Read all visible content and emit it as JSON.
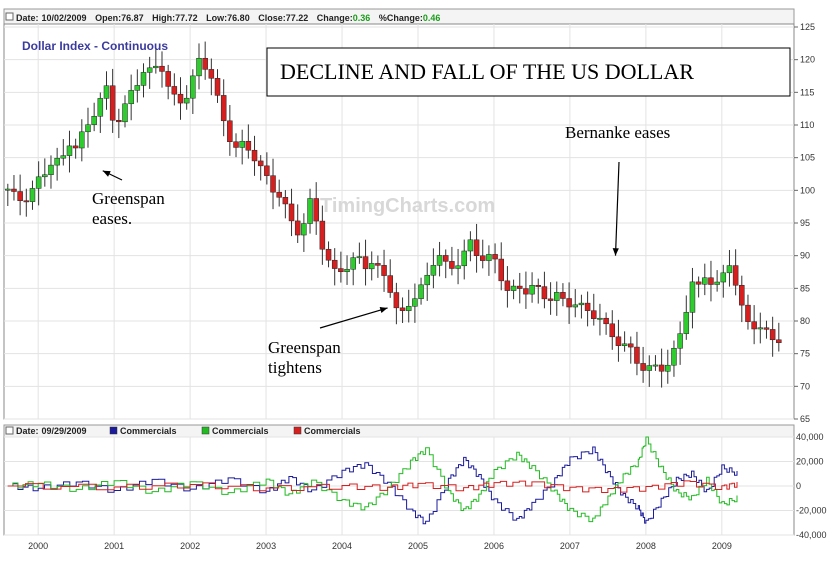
{
  "header": {
    "date_label": "Date:",
    "date": "10/02/2009",
    "open_label": "Open:",
    "open": "76.87",
    "high_label": "High:",
    "high": "77.72",
    "low_label": "Low:",
    "low": "76.80",
    "close_label": "Close:",
    "close": "77.22",
    "change_label": "Change:",
    "change": "0.36",
    "pct_label": "%Change:",
    "pct": "0.46"
  },
  "watermark": "TimingCharts.com",
  "colors": {
    "up": "#2ecc2e",
    "down": "#d62020",
    "series1": "#1b1b9b",
    "series2": "#22bb22",
    "series3": "#d62020"
  },
  "chart_data": [
    {
      "type": "candlestick",
      "title": "Dollar Index - Continuous",
      "banner": "DECLINE AND FALL OF THE US DOLLAR",
      "ylim": [
        65,
        125
      ],
      "yticks": [
        65,
        70,
        75,
        80,
        85,
        90,
        95,
        100,
        105,
        110,
        115,
        120,
        125
      ],
      "xticks": [
        "2000",
        "2001",
        "2002",
        "2003",
        "2004",
        "2005",
        "2006",
        "2007",
        "2008",
        "2009"
      ],
      "x_start": 1999.55,
      "x_end": 2009.95,
      "annotations": [
        {
          "id": "greenspan-eases",
          "lines": [
            "Greenspan",
            "eases."
          ],
          "target_year": 2000.85,
          "target_value": 103
        },
        {
          "id": "greenspan-tightens",
          "lines": [
            "Greenspan",
            "tightens"
          ],
          "target_year": 2004.6,
          "target_value": 82
        },
        {
          "id": "bernanke-eases",
          "lines": [
            "Bernanke eases"
          ],
          "target_year": 2007.6,
          "target_value": 90
        }
      ],
      "closes": [
        [
          1999.6,
          100.2
        ],
        [
          1999.7,
          99.0
        ],
        [
          1999.8,
          98.3
        ],
        [
          1999.9,
          99.5
        ],
        [
          2000.0,
          101.5
        ],
        [
          2000.1,
          103.0
        ],
        [
          2000.2,
          104.8
        ],
        [
          2000.3,
          104.0
        ],
        [
          2000.4,
          107.5
        ],
        [
          2000.5,
          106.5
        ],
        [
          2000.6,
          109.0
        ],
        [
          2000.7,
          111.0
        ],
        [
          2000.8,
          113.5
        ],
        [
          2000.9,
          115.5
        ],
        [
          2001.0,
          110.0
        ],
        [
          2001.1,
          111.5
        ],
        [
          2001.2,
          114.5
        ],
        [
          2001.3,
          116.5
        ],
        [
          2001.4,
          118.5
        ],
        [
          2001.5,
          118.0
        ],
        [
          2001.6,
          120.0
        ],
        [
          2001.7,
          116.0
        ],
        [
          2001.8,
          114.0
        ],
        [
          2001.9,
          113.5
        ],
        [
          2002.0,
          115.5
        ],
        [
          2002.1,
          120.0
        ],
        [
          2002.2,
          119.0
        ],
        [
          2002.3,
          117.0
        ],
        [
          2002.4,
          112.0
        ],
        [
          2002.5,
          108.5
        ],
        [
          2002.6,
          106.5
        ],
        [
          2002.7,
          107.0
        ],
        [
          2002.8,
          106.0
        ],
        [
          2002.9,
          104.0
        ],
        [
          2003.0,
          102.0
        ],
        [
          2003.1,
          100.0
        ],
        [
          2003.2,
          99.0
        ],
        [
          2003.3,
          96.0
        ],
        [
          2003.4,
          93.5
        ],
        [
          2003.5,
          95.0
        ],
        [
          2003.6,
          99.0
        ],
        [
          2003.7,
          93.0
        ],
        [
          2003.8,
          89.5
        ],
        [
          2003.9,
          87.5
        ],
        [
          2004.0,
          88.0
        ],
        [
          2004.1,
          88.5
        ],
        [
          2004.2,
          90.0
        ],
        [
          2004.3,
          88.5
        ],
        [
          2004.4,
          89.0
        ],
        [
          2004.5,
          87.5
        ],
        [
          2004.6,
          86.5
        ],
        [
          2004.7,
          82.0
        ],
        [
          2004.8,
          81.0
        ],
        [
          2004.9,
          83.0
        ],
        [
          2005.0,
          84.5
        ],
        [
          2005.1,
          86.0
        ],
        [
          2005.2,
          89.0
        ],
        [
          2005.3,
          90.5
        ],
        [
          2005.4,
          87.5
        ],
        [
          2005.5,
          88.5
        ],
        [
          2005.6,
          90.5
        ],
        [
          2005.7,
          92.0
        ],
        [
          2005.8,
          89.5
        ],
        [
          2005.9,
          90.0
        ],
        [
          2006.0,
          89.5
        ],
        [
          2006.1,
          86.5
        ],
        [
          2006.2,
          84.5
        ],
        [
          2006.3,
          85.0
        ],
        [
          2006.4,
          84.5
        ],
        [
          2006.5,
          85.5
        ],
        [
          2006.6,
          84.5
        ],
        [
          2006.7,
          83.0
        ],
        [
          2006.8,
          84.5
        ],
        [
          2006.9,
          83.0
        ],
        [
          2007.0,
          82.5
        ],
        [
          2007.1,
          83.0
        ],
        [
          2007.2,
          81.5
        ],
        [
          2007.3,
          81.0
        ],
        [
          2007.4,
          80.5
        ],
        [
          2007.5,
          78.5
        ],
        [
          2007.6,
          77.0
        ],
        [
          2007.7,
          76.5
        ],
        [
          2007.8,
          75.5
        ],
        [
          2007.9,
          73.5
        ],
        [
          2008.0,
          72.5
        ],
        [
          2008.1,
          73.0
        ],
        [
          2008.2,
          72.8
        ],
        [
          2008.3,
          73.5
        ],
        [
          2008.4,
          76.0
        ],
        [
          2008.5,
          80.0
        ],
        [
          2008.6,
          86.0
        ],
        [
          2008.7,
          85.0
        ],
        [
          2008.8,
          87.5
        ],
        [
          2008.9,
          85.0
        ],
        [
          2009.0,
          86.5
        ],
        [
          2009.1,
          89.0
        ],
        [
          2009.2,
          85.0
        ],
        [
          2009.3,
          80.0
        ],
        [
          2009.4,
          79.5
        ],
        [
          2009.5,
          79.0
        ],
        [
          2009.6,
          78.0
        ],
        [
          2009.7,
          77.0
        ],
        [
          2009.75,
          77.22
        ]
      ]
    },
    {
      "type": "line",
      "header_label": "Date:",
      "header_date": "09/29/2009",
      "ylim": [
        -40000,
        40000
      ],
      "yticks": [
        "40,000",
        "20,000",
        "0",
        "-20,000",
        "-40,000"
      ],
      "ytick_values": [
        40000,
        20000,
        0,
        -20000,
        -40000
      ],
      "legend": [
        "Commercials",
        "Commercials",
        "Commercials"
      ],
      "series": [
        {
          "name": "Commercials",
          "color": "#1b1b9b",
          "points": [
            [
              1999.6,
              0
            ],
            [
              2000.0,
              -2000
            ],
            [
              2000.5,
              3000
            ],
            [
              2001.0,
              -4000
            ],
            [
              2001.5,
              5000
            ],
            [
              2002.0,
              -3000
            ],
            [
              2002.5,
              6000
            ],
            [
              2003.0,
              -5000
            ],
            [
              2003.3,
              7000
            ],
            [
              2003.6,
              -4000
            ],
            [
              2004.0,
              12000
            ],
            [
              2004.3,
              18000
            ],
            [
              2004.6,
              2000
            ],
            [
              2004.9,
              -20000
            ],
            [
              2005.1,
              -30000
            ],
            [
              2005.4,
              5000
            ],
            [
              2005.6,
              22000
            ],
            [
              2005.8,
              8000
            ],
            [
              2006.0,
              -12000
            ],
            [
              2006.3,
              -28000
            ],
            [
              2006.5,
              -15000
            ],
            [
              2006.8,
              5000
            ],
            [
              2007.0,
              22000
            ],
            [
              2007.3,
              30000
            ],
            [
              2007.5,
              10000
            ],
            [
              2007.7,
              -8000
            ],
            [
              2007.9,
              -18000
            ],
            [
              2008.0,
              -30000
            ],
            [
              2008.2,
              -12000
            ],
            [
              2008.4,
              5000
            ],
            [
              2008.6,
              10000
            ],
            [
              2008.8,
              -5000
            ],
            [
              2009.0,
              15000
            ],
            [
              2009.2,
              10000
            ]
          ]
        },
        {
          "name": "Commercials",
          "color": "#22bb22",
          "points": [
            [
              1999.6,
              0
            ],
            [
              2000.0,
              2000
            ],
            [
              2000.5,
              -3000
            ],
            [
              2001.0,
              4000
            ],
            [
              2001.5,
              -5000
            ],
            [
              2002.0,
              3000
            ],
            [
              2002.5,
              -6000
            ],
            [
              2003.0,
              5000
            ],
            [
              2003.3,
              -7000
            ],
            [
              2003.6,
              4000
            ],
            [
              2004.0,
              -12000
            ],
            [
              2004.3,
              -18000
            ],
            [
              2004.6,
              -2000
            ],
            [
              2004.9,
              20000
            ],
            [
              2005.1,
              30000
            ],
            [
              2005.4,
              -5000
            ],
            [
              2005.6,
              -20000
            ],
            [
              2005.8,
              -8000
            ],
            [
              2006.0,
              12000
            ],
            [
              2006.3,
              26000
            ],
            [
              2006.5,
              15000
            ],
            [
              2006.8,
              -5000
            ],
            [
              2007.0,
              -20000
            ],
            [
              2007.3,
              -28000
            ],
            [
              2007.5,
              -10000
            ],
            [
              2007.7,
              8000
            ],
            [
              2007.9,
              20000
            ],
            [
              2008.0,
              38000
            ],
            [
              2008.2,
              14000
            ],
            [
              2008.4,
              -5000
            ],
            [
              2008.6,
              -10000
            ],
            [
              2008.8,
              5000
            ],
            [
              2009.0,
              -15000
            ],
            [
              2009.2,
              -10000
            ]
          ]
        },
        {
          "name": "Commercials",
          "color": "#d62020",
          "points": [
            [
              1999.6,
              0
            ],
            [
              2001.0,
              -1000
            ],
            [
              2002.0,
              1000
            ],
            [
              2003.0,
              -2000
            ],
            [
              2004.0,
              0
            ],
            [
              2004.6,
              -1500
            ],
            [
              2005.0,
              1500
            ],
            [
              2005.6,
              -2000
            ],
            [
              2006.0,
              2000
            ],
            [
              2006.5,
              2500
            ],
            [
              2007.0,
              -2000
            ],
            [
              2007.5,
              -3000
            ],
            [
              2008.0,
              -1500
            ],
            [
              2008.5,
              3000
            ],
            [
              2009.0,
              -1000
            ],
            [
              2009.2,
              2000
            ]
          ]
        }
      ]
    }
  ]
}
